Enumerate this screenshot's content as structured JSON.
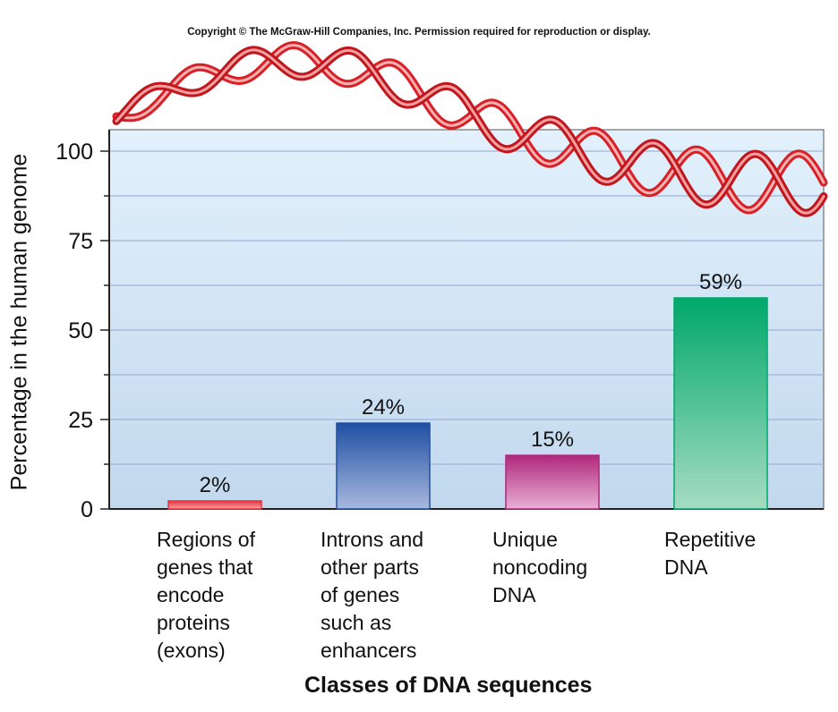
{
  "copyright": "Copyright © The McGraw-Hill Companies, Inc. Permission required for reproduction or display.",
  "chart_data": {
    "type": "bar",
    "title": "",
    "xlabel": "Classes of DNA sequences",
    "ylabel": "Percentage in the human genome",
    "ylim": [
      0,
      100
    ],
    "yticks": [
      "0",
      "25",
      "50",
      "75",
      "100"
    ],
    "grid": true,
    "categories": [
      "Regions of genes that encode proteins (exons)",
      "Introns and other parts of genes such as enhancers",
      "Unique noncoding DNA",
      "Repetitive DNA"
    ],
    "category_lines": [
      [
        "Regions of",
        "genes that",
        "encode",
        "proteins",
        "(exons)"
      ],
      [
        "Introns and",
        "other parts",
        "of genes",
        "such as",
        "enhancers"
      ],
      [
        "Unique",
        "noncoding",
        "DNA"
      ],
      [
        "Repetitive",
        "DNA"
      ]
    ],
    "values": [
      2,
      24,
      15,
      59
    ],
    "data_labels": [
      "2%",
      "24%",
      "15%",
      "59%"
    ],
    "colors": {
      "bars": [
        [
          "#e8323c",
          "#f7a4a8"
        ],
        [
          "#1f4fa3",
          "#a8b8de"
        ],
        [
          "#b0287c",
          "#e8b0d4"
        ],
        [
          "#00a86b",
          "#a6dcc2"
        ]
      ],
      "plot_bg_top": "#e2f1fb",
      "plot_bg_bottom": "#c2d8ee",
      "grid": "#9fb3d9",
      "dna_ribbon": "#d72027"
    }
  }
}
